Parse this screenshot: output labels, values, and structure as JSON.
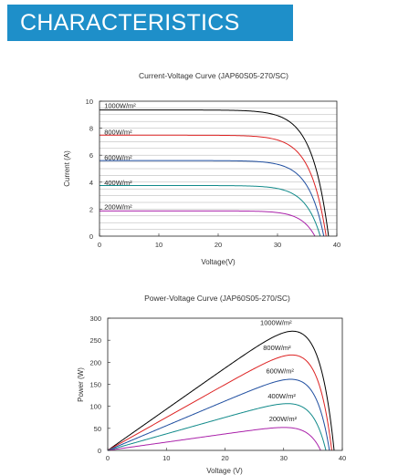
{
  "header": {
    "title": "CHARACTERISTICS"
  },
  "chart_data": [
    {
      "type": "line",
      "title": "Current-Voltage Curve (JAP60S05-270/SC)",
      "xlabel": "Voltage(V)",
      "ylabel": "Current (A)",
      "xlim": [
        0,
        40
      ],
      "ylim": [
        0,
        10
      ],
      "x_ticks": [
        "0",
        "10",
        "20",
        "30",
        "40"
      ],
      "y_ticks": [
        "0",
        "2",
        "4",
        "6",
        "8",
        "10"
      ],
      "grid": "horizontal",
      "series": [
        {
          "name": "1000W/m²",
          "color": "#000000",
          "isc": 9.35,
          "imp": 8.75,
          "vmp": 31.0,
          "voc": 38.6,
          "label_i": 9.7
        },
        {
          "name": "800W/m²",
          "color": "#dd2222",
          "isc": 7.48,
          "imp": 7.0,
          "vmp": 30.8,
          "voc": 38.2,
          "label_i": 7.75
        },
        {
          "name": "600W/m²",
          "color": "#1f4ea0",
          "isc": 5.6,
          "imp": 5.25,
          "vmp": 30.6,
          "voc": 37.8,
          "label_i": 5.85
        },
        {
          "name": "400W/m²",
          "color": "#118a8a",
          "isc": 3.75,
          "imp": 3.5,
          "vmp": 30.3,
          "voc": 37.2,
          "label_i": 4.0
        },
        {
          "name": "200W/m²",
          "color": "#aa22aa",
          "isc": 1.87,
          "imp": 1.75,
          "vmp": 29.9,
          "voc": 36.3,
          "label_i": 2.2
        }
      ]
    },
    {
      "type": "line",
      "title": "Power-Voltage Curve (JAP60S05-270/SC)",
      "xlabel": "Voltage (V)",
      "ylabel": "Power (W)",
      "xlim": [
        0,
        40
      ],
      "ylim": [
        0,
        300
      ],
      "x_ticks": [
        "0",
        "10",
        "20",
        "30",
        "40"
      ],
      "y_ticks": [
        "0",
        "50",
        "100",
        "150",
        "200",
        "250",
        "300"
      ],
      "grid": "none",
      "series": [
        {
          "name": "1000W/m²",
          "color": "#000000",
          "pmax": 270,
          "vmp": 31.0,
          "voc": 38.6,
          "label_v": 26.0,
          "label_p": 285
        },
        {
          "name": "800W/m²",
          "color": "#dd2222",
          "pmax": 216,
          "vmp": 30.8,
          "voc": 38.2,
          "label_v": 26.5,
          "label_p": 228
        },
        {
          "name": "600W/m²",
          "color": "#1f4ea0",
          "pmax": 161,
          "vmp": 30.6,
          "voc": 37.8,
          "label_v": 27.0,
          "label_p": 175
        },
        {
          "name": "400W/m²",
          "color": "#118a8a",
          "pmax": 106,
          "vmp": 30.3,
          "voc": 37.2,
          "label_v": 27.3,
          "label_p": 118
        },
        {
          "name": "200W/m²",
          "color": "#aa22aa",
          "pmax": 52,
          "vmp": 29.9,
          "voc": 36.3,
          "label_v": 27.5,
          "label_p": 66
        }
      ]
    }
  ]
}
